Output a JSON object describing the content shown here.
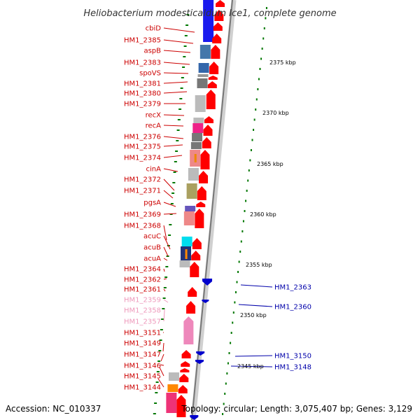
{
  "title": "Heliobacterium modesticaldum Ice1, complete genome",
  "accession": "Accession: NC_010337",
  "topology": "Topology: circular; Length: 3,075,407 bp; Genes: 3,129",
  "colors": {
    "plus_strand": "#ff0000",
    "minus_strand": "#0000cc",
    "label_red": "#cc0000",
    "label_pink": "#ee99bb",
    "label_blue": "#0000aa",
    "scale_dots": "#007700"
  },
  "scale_ticks": [
    "2375 kbp",
    "2370 kbp",
    "2365 kbp",
    "2360 kbp",
    "2355 kbp",
    "2350 kbp",
    "2345 kbp"
  ],
  "left_labels": [
    {
      "name": "cbiD",
      "tone": "red"
    },
    {
      "name": "HM1_2385",
      "tone": "red"
    },
    {
      "name": "aspB",
      "tone": "red"
    },
    {
      "name": "HM1_2383",
      "tone": "red"
    },
    {
      "name": "spoVS",
      "tone": "red"
    },
    {
      "name": "HM1_2381",
      "tone": "red"
    },
    {
      "name": "HM1_2380",
      "tone": "red"
    },
    {
      "name": "HM1_2379",
      "tone": "red"
    },
    {
      "name": "recX",
      "tone": "red"
    },
    {
      "name": "recA",
      "tone": "red"
    },
    {
      "name": "HM1_2376",
      "tone": "red"
    },
    {
      "name": "HM1_2375",
      "tone": "red"
    },
    {
      "name": "HM1_2374",
      "tone": "red"
    },
    {
      "name": "cinA",
      "tone": "red"
    },
    {
      "name": "HM1_2372",
      "tone": "red"
    },
    {
      "name": "HM1_2371",
      "tone": "red"
    },
    {
      "name": "pgsA",
      "tone": "red"
    },
    {
      "name": "HM1_2369",
      "tone": "red"
    },
    {
      "name": "HM1_2368",
      "tone": "red"
    },
    {
      "name": "acuC",
      "tone": "red"
    },
    {
      "name": "acuB",
      "tone": "red"
    },
    {
      "name": "acuA",
      "tone": "red"
    },
    {
      "name": "HM1_2364",
      "tone": "red"
    },
    {
      "name": "HM1_2362",
      "tone": "red"
    },
    {
      "name": "HM1_2361",
      "tone": "red"
    },
    {
      "name": "HM1_2359",
      "tone": "pink"
    },
    {
      "name": "HM1_2358",
      "tone": "pink"
    },
    {
      "name": "HM1_2357",
      "tone": "pink"
    },
    {
      "name": "HM1_3151",
      "tone": "red"
    },
    {
      "name": "HM1_3149",
      "tone": "red"
    },
    {
      "name": "HM1_3147",
      "tone": "red"
    },
    {
      "name": "HM1_3146",
      "tone": "red"
    },
    {
      "name": "HM1_3145",
      "tone": "red"
    },
    {
      "name": "HM1_3144",
      "tone": "red"
    }
  ],
  "right_labels": [
    {
      "name": "HM1_2363",
      "tone": "blue"
    },
    {
      "name": "HM1_2360",
      "tone": "blue"
    },
    {
      "name": "HM1_3150",
      "tone": "blue"
    },
    {
      "name": "HM1_3148",
      "tone": "blue"
    }
  ]
}
